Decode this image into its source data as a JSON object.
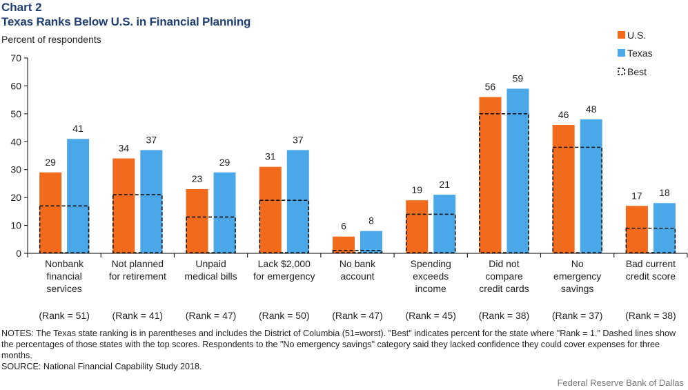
{
  "title": "Chart 2",
  "subtitle": "Texas Ranks Below U.S. in Financial Planning",
  "notes": "NOTES: The Texas state ranking is in parentheses and includes the District of Columbia (51=worst). \"Best\" indicates percent for the state where \"Rank = 1.\" Dashed lines show the percentages of those states with the top scores. Respondents to the \"No emergency savings\" category said they lacked confidence they could cover expenses for three months.",
  "source": "SOURCE: National Financial Capability Study 2018.",
  "credit": "Federal Reserve Bank of Dallas",
  "colors": {
    "us": "#f26b1d",
    "texas": "#4aa8e8",
    "best": "#111111"
  },
  "chart_data": {
    "type": "bar",
    "title": "Texas Ranks Below U.S. in Financial Planning",
    "ylabel": "Percent of respondents",
    "xlabel": "",
    "ylim": [
      0,
      70
    ],
    "yticks": [
      0,
      10,
      20,
      30,
      40,
      50,
      60,
      70
    ],
    "grid": false,
    "legend_position": "top-right",
    "categories": [
      [
        "Nonbank",
        "financial",
        "services"
      ],
      [
        "Not planned",
        "for retirement"
      ],
      [
        "Unpaid",
        "medical bills"
      ],
      [
        "Lack $2,000",
        "for emergency"
      ],
      [
        "No bank",
        "account"
      ],
      [
        "Spending",
        "exceeds",
        "income"
      ],
      [
        "Did not",
        "compare",
        "credit cards"
      ],
      [
        "No",
        "emergency",
        "savings"
      ],
      [
        "Bad current",
        "credit score"
      ]
    ],
    "ranks": [
      "(Rank = 51)",
      "(Rank = 41)",
      "(Rank = 47)",
      "(Rank = 50)",
      "(Rank = 47)",
      "(Rank = 45)",
      "(Rank = 38)",
      "(Rank = 37)",
      "(Rank = 38)"
    ],
    "series": [
      {
        "name": "U.S.",
        "values": [
          29,
          34,
          23,
          31,
          6,
          19,
          56,
          46,
          17
        ]
      },
      {
        "name": "Texas",
        "values": [
          41,
          37,
          29,
          37,
          8,
          21,
          59,
          48,
          18
        ]
      },
      {
        "name": "Best",
        "values": [
          17,
          21,
          13,
          19,
          1,
          14,
          50,
          38,
          9
        ]
      }
    ]
  }
}
